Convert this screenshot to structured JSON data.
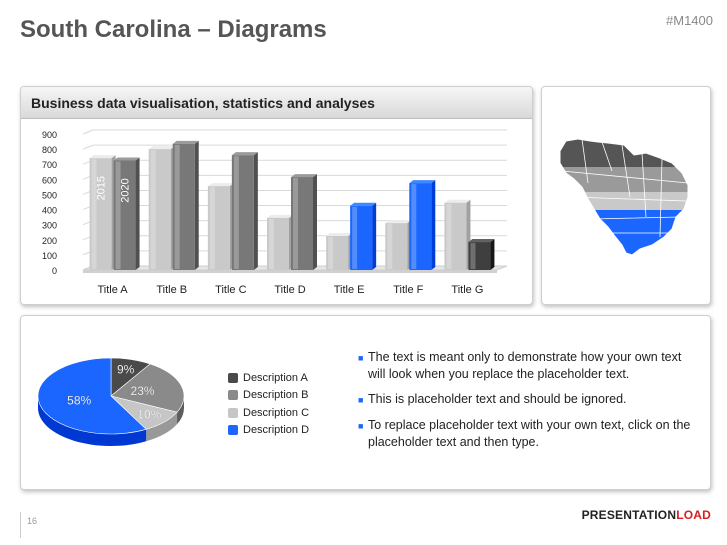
{
  "page": {
    "title": "South Carolina – Diagrams",
    "slide_id": "#M1400",
    "page_number": "16"
  },
  "brand": {
    "part1": "PRESENTATION",
    "part2": "LOAD"
  },
  "panel": {
    "title": "Business data visualisation, statistics and analyses"
  },
  "bullets": [
    "The text is meant only to demonstrate how your own text will look when you replace the placeholder text.",
    "This is placeholder text and should be ignored.",
    "To replace placeholder text with your own text, click on the placeholder text and then type."
  ],
  "colors": {
    "accent": "#1a66ff",
    "dark": "#4a4a4a",
    "mid": "#8a8a8a",
    "light": "#c6c6c6",
    "darker": "#3a3a3a"
  },
  "chart_data": [
    {
      "type": "bar",
      "categories": [
        "Title A",
        "Title B",
        "Title C",
        "Title D",
        "Title E",
        "Title F",
        "Title G"
      ],
      "series": [
        {
          "name": "2015",
          "values": [
            740,
            800,
            555,
            345,
            225,
            310,
            445
          ]
        },
        {
          "name": "2020",
          "values": [
            725,
            835,
            760,
            615,
            425,
            575,
            185
          ]
        }
      ],
      "bar_colors": [
        [
          "#c9c9c9",
          "#787878"
        ],
        [
          "#c9c9c9",
          "#787878"
        ],
        [
          "#c9c9c9",
          "#787878"
        ],
        [
          "#c9c9c9",
          "#787878"
        ],
        [
          "#c9c9c9",
          "#1a66ff"
        ],
        [
          "#c9c9c9",
          "#1a66ff"
        ],
        [
          "#c9c9c9",
          "#3f3f3f"
        ]
      ],
      "yticks": [
        "0",
        "100",
        "200",
        "300",
        "400",
        "500",
        "600",
        "700",
        "800",
        "900"
      ],
      "ylim": [
        0,
        900
      ],
      "grid": true
    },
    {
      "type": "pie",
      "categories": [
        "Description A",
        "Description B",
        "Description C",
        "Description D"
      ],
      "values": [
        9,
        23,
        10,
        58
      ],
      "labels": [
        "9%",
        "23%",
        "10%",
        "58%"
      ],
      "colors": [
        "#4a4a4a",
        "#8a8a8a",
        "#c6c6c6",
        "#1a66ff"
      ]
    }
  ]
}
